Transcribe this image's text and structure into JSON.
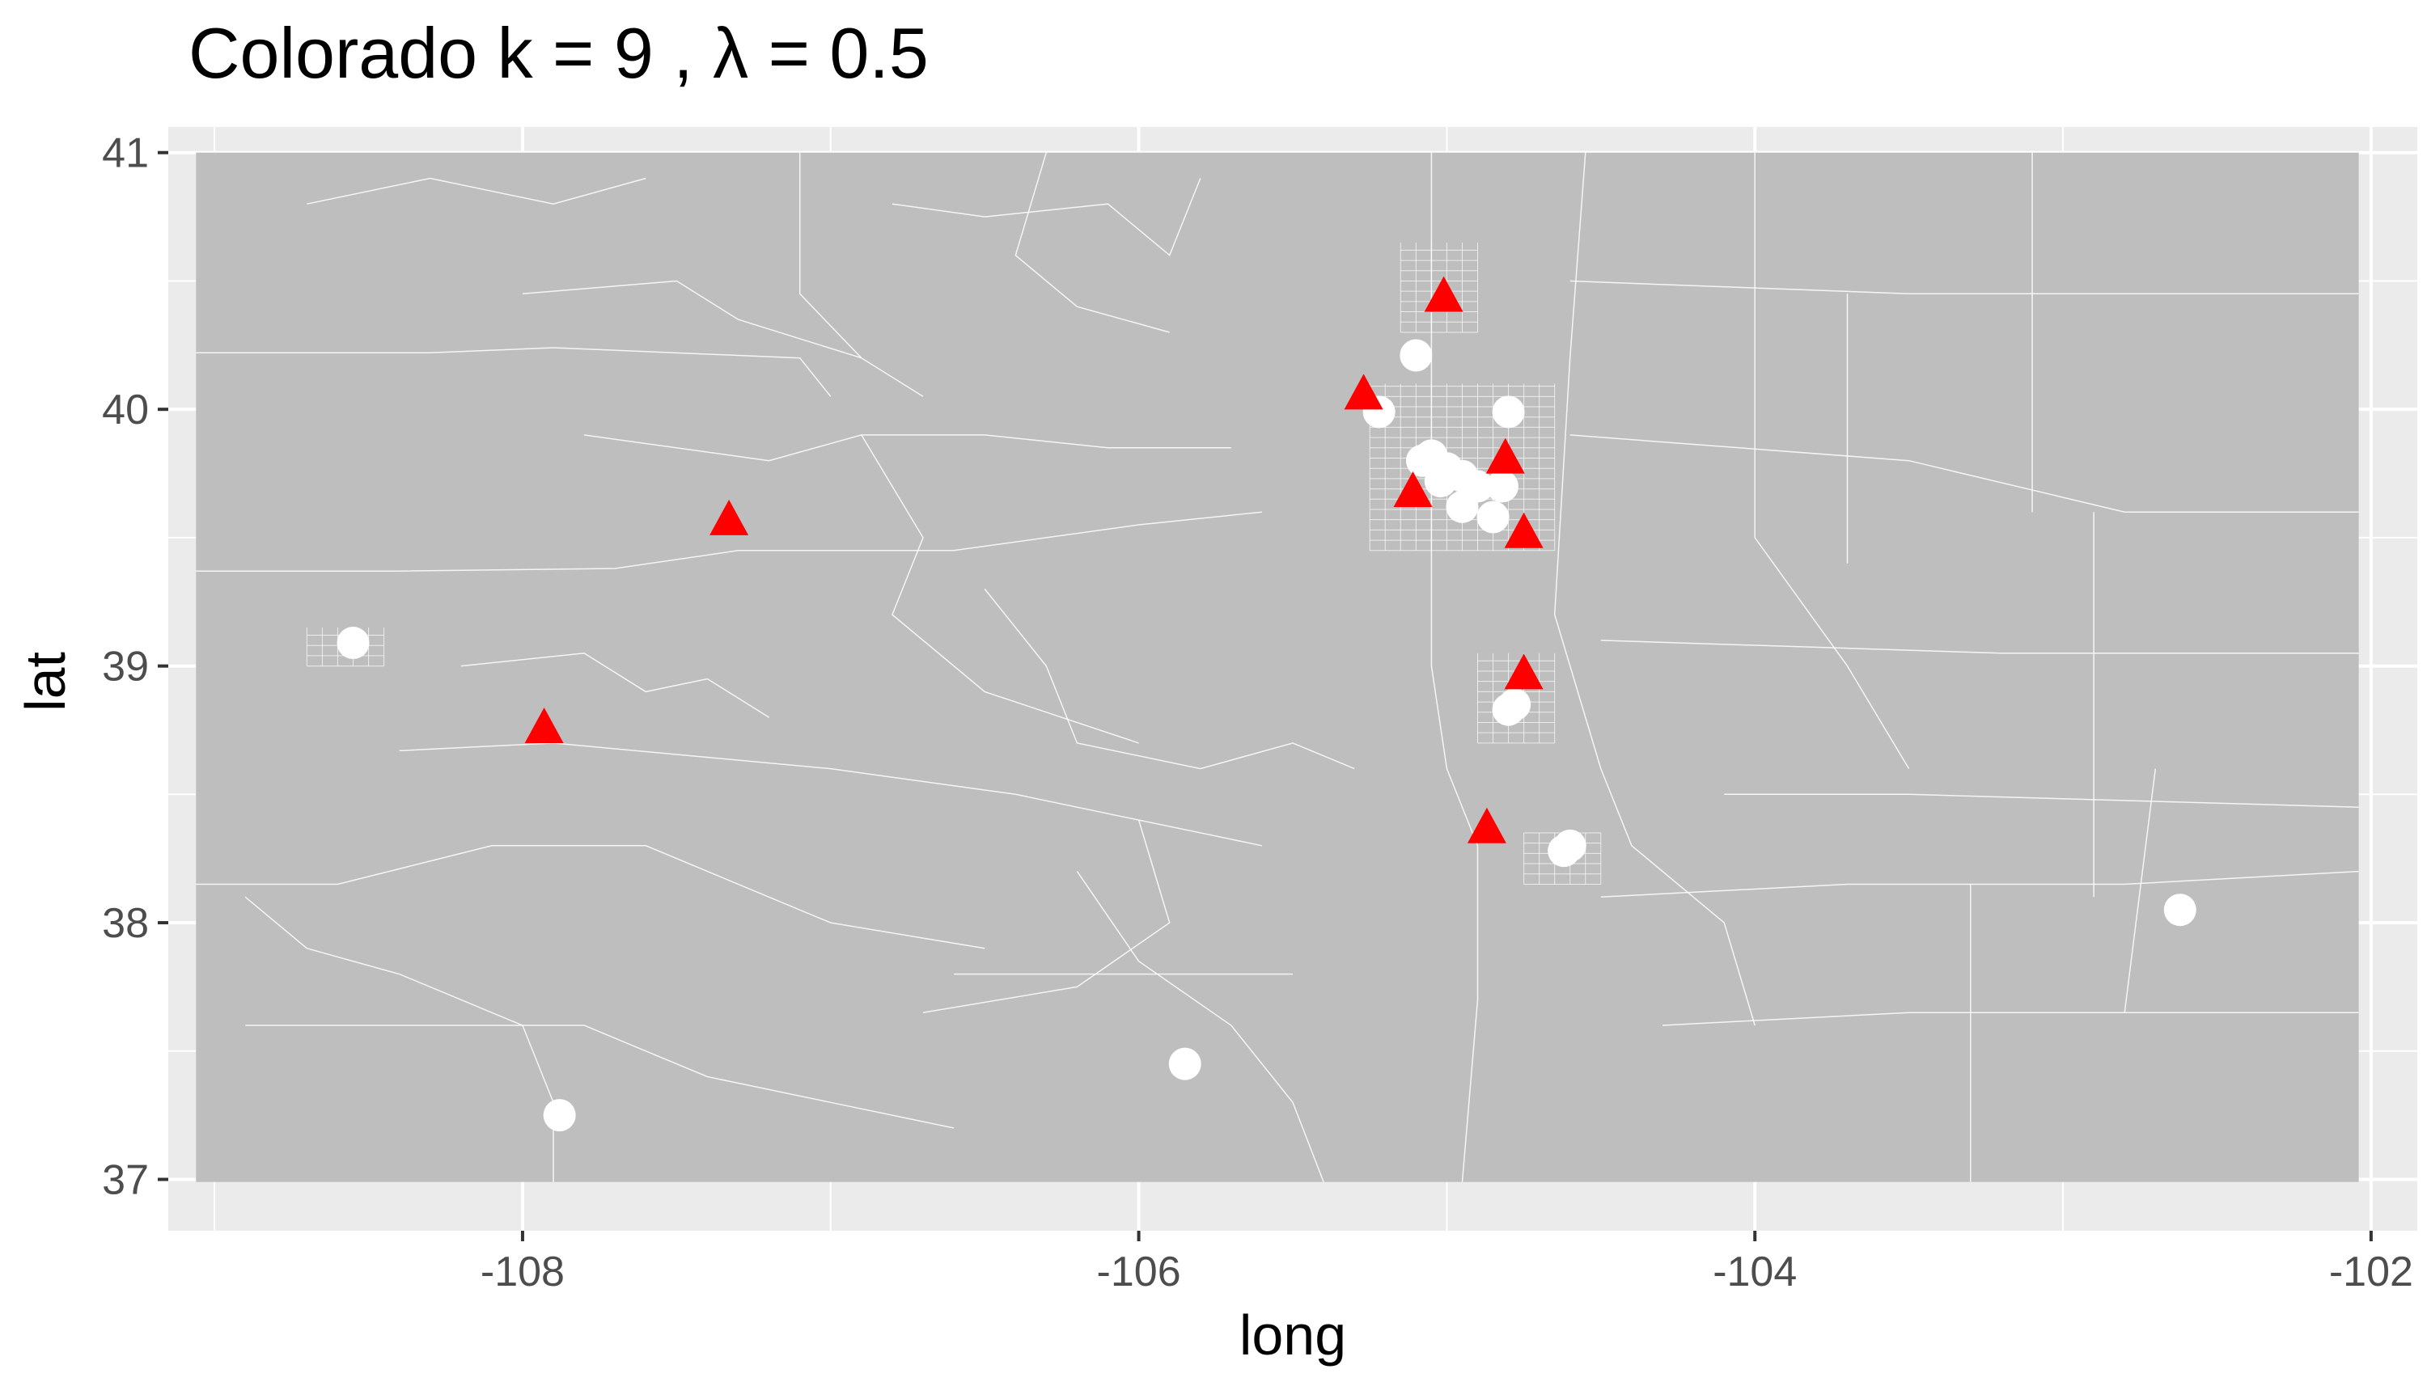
{
  "chart_data": {
    "type": "scatter",
    "title": "Colorado  k =  9 ,  λ  =  0.5",
    "xlabel": "long",
    "ylabel": "lat",
    "xlim": [
      -109.15,
      -101.85
    ],
    "ylim": [
      36.8,
      41.1
    ],
    "x_ticks": [
      -108,
      -106,
      -104,
      -102
    ],
    "x_tick_labels": [
      "-108",
      "-106",
      "-104",
      "-102"
    ],
    "y_ticks": [
      37,
      38,
      39,
      40,
      41
    ],
    "y_tick_labels": [
      "37",
      "38",
      "39",
      "40",
      "41"
    ],
    "grid": true,
    "legend": "none",
    "background_map": "Colorado census tract boundaries",
    "colors": {
      "panel": "#ebebeb",
      "grid": "#ffffff",
      "map_fill": "#bebebe",
      "map_border": "#ffffff",
      "circle": "#ffffff",
      "triangle": "#ff0000"
    },
    "series": [
      {
        "marker": "circle",
        "x": [
          -108.55,
          -107.88,
          -105.85,
          -102.62,
          -104.62,
          -104.6,
          -104.78,
          -104.8,
          -104.95,
          -105.02,
          -104.85,
          -104.9,
          -105.08,
          -105.05,
          -105.0,
          -104.95,
          -104.82,
          -104.8,
          -105.22,
          -105.1
        ],
        "y": [
          39.09,
          37.25,
          37.45,
          38.05,
          38.28,
          38.3,
          38.85,
          38.83,
          39.62,
          39.72,
          39.58,
          39.7,
          39.8,
          39.82,
          39.77,
          39.74,
          39.7,
          39.99,
          39.99,
          40.21
        ]
      },
      {
        "marker": "triangle",
        "x": [
          -107.33,
          -107.93,
          -105.01,
          -105.27,
          -104.81,
          -105.11,
          -104.75,
          -104.75,
          -104.87
        ],
        "y": [
          39.56,
          38.75,
          40.43,
          40.05,
          39.8,
          39.67,
          39.51,
          38.96,
          38.36
        ]
      }
    ]
  }
}
